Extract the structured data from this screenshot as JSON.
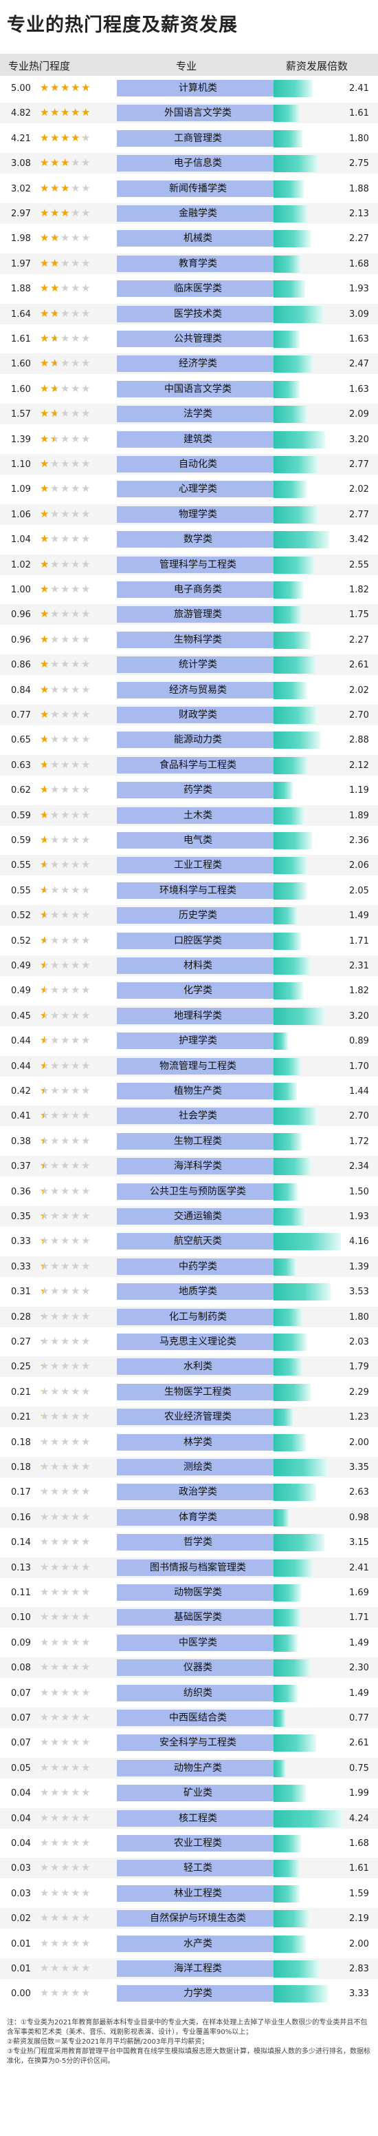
{
  "title": "专业的热门程度及薪资发展",
  "headers": {
    "hot": "专业热门程度",
    "major": "专业",
    "salary": "薪资发展倍数"
  },
  "star_color": "#f5a500",
  "major_bg_color": "#a9bbee",
  "bar_color": "#2ec4ae",
  "chart_data": {
    "type": "bar",
    "title": "专业的热门程度及薪资发展",
    "columns": [
      "专业热门程度",
      "专业",
      "薪资发展倍数"
    ],
    "hot_scale_max": 5,
    "rows": [
      {
        "major": "计算机类",
        "hot": "5.00",
        "ratio": "2.41"
      },
      {
        "major": "外国语言文学类",
        "hot": "4.82",
        "ratio": "1.61"
      },
      {
        "major": "工商管理类",
        "hot": "4.21",
        "ratio": "1.80"
      },
      {
        "major": "电子信息类",
        "hot": "3.08",
        "ratio": "2.75"
      },
      {
        "major": "新闻传播学类",
        "hot": "3.02",
        "ratio": "1.88"
      },
      {
        "major": "金融学类",
        "hot": "2.97",
        "ratio": "2.13"
      },
      {
        "major": "机械类",
        "hot": "1.98",
        "ratio": "2.27"
      },
      {
        "major": "教育学类",
        "hot": "1.97",
        "ratio": "1.68"
      },
      {
        "major": "临床医学类",
        "hot": "1.88",
        "ratio": "1.93"
      },
      {
        "major": "医学技术类",
        "hot": "1.64",
        "ratio": "3.09"
      },
      {
        "major": "公共管理类",
        "hot": "1.61",
        "ratio": "1.63"
      },
      {
        "major": "经济学类",
        "hot": "1.60",
        "ratio": "2.47"
      },
      {
        "major": "中国语言文学类",
        "hot": "1.60",
        "ratio": "1.63"
      },
      {
        "major": "法学类",
        "hot": "1.57",
        "ratio": "2.09"
      },
      {
        "major": "建筑类",
        "hot": "1.39",
        "ratio": "3.20"
      },
      {
        "major": "自动化类",
        "hot": "1.10",
        "ratio": "2.77"
      },
      {
        "major": "心理学类",
        "hot": "1.09",
        "ratio": "2.02"
      },
      {
        "major": "物理学类",
        "hot": "1.06",
        "ratio": "2.77"
      },
      {
        "major": "数学类",
        "hot": "1.04",
        "ratio": "3.42"
      },
      {
        "major": "管理科学与工程类",
        "hot": "1.02",
        "ratio": "2.55"
      },
      {
        "major": "电子商务类",
        "hot": "1.00",
        "ratio": "1.82"
      },
      {
        "major": "旅游管理类",
        "hot": "0.96",
        "ratio": "1.75"
      },
      {
        "major": "生物科学类",
        "hot": "0.96",
        "ratio": "2.27"
      },
      {
        "major": "统计学类",
        "hot": "0.86",
        "ratio": "2.61"
      },
      {
        "major": "经济与贸易类",
        "hot": "0.84",
        "ratio": "2.02"
      },
      {
        "major": "财政学类",
        "hot": "0.77",
        "ratio": "2.70"
      },
      {
        "major": "能源动力类",
        "hot": "0.65",
        "ratio": "2.88"
      },
      {
        "major": "食品科学与工程类",
        "hot": "0.63",
        "ratio": "2.12"
      },
      {
        "major": "药学类",
        "hot": "0.62",
        "ratio": "1.19"
      },
      {
        "major": "土木类",
        "hot": "0.59",
        "ratio": "1.89"
      },
      {
        "major": "电气类",
        "hot": "0.59",
        "ratio": "2.36"
      },
      {
        "major": "工业工程类",
        "hot": "0.55",
        "ratio": "2.06"
      },
      {
        "major": "环境科学与工程类",
        "hot": "0.55",
        "ratio": "2.05"
      },
      {
        "major": "历史学类",
        "hot": "0.52",
        "ratio": "1.49"
      },
      {
        "major": "口腔医学类",
        "hot": "0.52",
        "ratio": "1.71"
      },
      {
        "major": "材料类",
        "hot": "0.49",
        "ratio": "2.31"
      },
      {
        "major": "化学类",
        "hot": "0.49",
        "ratio": "1.82"
      },
      {
        "major": "地理科学类",
        "hot": "0.45",
        "ratio": "3.20"
      },
      {
        "major": "护理学类",
        "hot": "0.44",
        "ratio": "0.89"
      },
      {
        "major": "物流管理与工程类",
        "hot": "0.44",
        "ratio": "1.70"
      },
      {
        "major": "植物生产类",
        "hot": "0.42",
        "ratio": "1.44"
      },
      {
        "major": "社会学类",
        "hot": "0.41",
        "ratio": "2.70"
      },
      {
        "major": "生物工程类",
        "hot": "0.38",
        "ratio": "1.72"
      },
      {
        "major": "海洋科学类",
        "hot": "0.37",
        "ratio": "2.34"
      },
      {
        "major": "公共卫生与预防医学类",
        "hot": "0.36",
        "ratio": "1.50"
      },
      {
        "major": "交通运输类",
        "hot": "0.35",
        "ratio": "1.93"
      },
      {
        "major": "航空航天类",
        "hot": "0.33",
        "ratio": "4.16"
      },
      {
        "major": "中药学类",
        "hot": "0.33",
        "ratio": "1.39"
      },
      {
        "major": "地质学类",
        "hot": "0.31",
        "ratio": "3.53"
      },
      {
        "major": "化工与制药类",
        "hot": "0.28",
        "ratio": "1.80"
      },
      {
        "major": "马克思主义理论类",
        "hot": "0.27",
        "ratio": "2.03"
      },
      {
        "major": "水利类",
        "hot": "0.25",
        "ratio": "1.79"
      },
      {
        "major": "生物医学工程类",
        "hot": "0.21",
        "ratio": "2.29"
      },
      {
        "major": "农业经济管理类",
        "hot": "0.21",
        "ratio": "1.23"
      },
      {
        "major": "林学类",
        "hot": "0.18",
        "ratio": "2.00"
      },
      {
        "major": "测绘类",
        "hot": "0.18",
        "ratio": "3.35"
      },
      {
        "major": "政治学类",
        "hot": "0.17",
        "ratio": "2.63"
      },
      {
        "major": "体育学类",
        "hot": "0.16",
        "ratio": "0.98"
      },
      {
        "major": "哲学类",
        "hot": "0.14",
        "ratio": "3.15"
      },
      {
        "major": "图书情报与档案管理类",
        "hot": "0.13",
        "ratio": "2.41"
      },
      {
        "major": "动物医学类",
        "hot": "0.11",
        "ratio": "1.69"
      },
      {
        "major": "基础医学类",
        "hot": "0.10",
        "ratio": "1.71"
      },
      {
        "major": "中医学类",
        "hot": "0.09",
        "ratio": "1.49"
      },
      {
        "major": "仪器类",
        "hot": "0.08",
        "ratio": "2.30"
      },
      {
        "major": "纺织类",
        "hot": "0.07",
        "ratio": "1.49"
      },
      {
        "major": "中西医结合类",
        "hot": "0.07",
        "ratio": "0.77"
      },
      {
        "major": "安全科学与工程类",
        "hot": "0.07",
        "ratio": "2.61"
      },
      {
        "major": "动物生产类",
        "hot": "0.05",
        "ratio": "0.75"
      },
      {
        "major": "矿业类",
        "hot": "0.04",
        "ratio": "1.99"
      },
      {
        "major": "核工程类",
        "hot": "0.04",
        "ratio": "4.24"
      },
      {
        "major": "农业工程类",
        "hot": "0.04",
        "ratio": "1.68"
      },
      {
        "major": "轻工类",
        "hot": "0.03",
        "ratio": "1.61"
      },
      {
        "major": "林业工程类",
        "hot": "0.03",
        "ratio": "1.59"
      },
      {
        "major": "自然保护与环境生态类",
        "hot": "0.02",
        "ratio": "2.19"
      },
      {
        "major": "水产类",
        "hot": "0.01",
        "ratio": "2.00"
      },
      {
        "major": "海洋工程类",
        "hot": "0.01",
        "ratio": "2.83"
      },
      {
        "major": "力学类",
        "hot": "0.00",
        "ratio": "3.33"
      }
    ]
  },
  "footnotes": [
    "注：①专业类为2021年教育部最新本科专业目录中的专业大类，在样本处理上去掉了毕业生人数很少的专业类并且不包含军事类和艺术类（美术、音乐、戏剧影视表演、设计），专业覆盖率90%以上；",
    "②薪资发展倍数＝某专业2021年月平均薪酬/2003年月平均薪资；",
    "③专业热门程度采用教育部管理平台中国教育在线学生模拟填报志愿大数据计算，模拟填报人数的多少进行排名，数据标准化，在换算为0-5分的评价区间。"
  ]
}
